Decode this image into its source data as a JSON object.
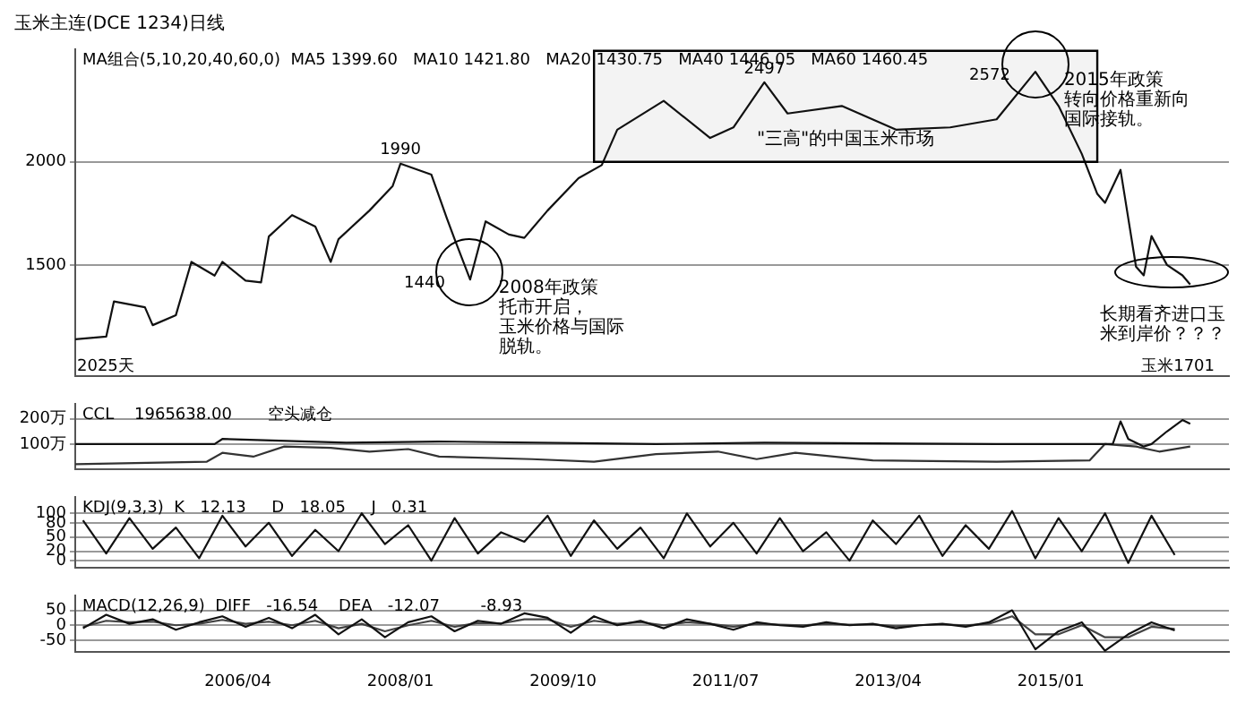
{
  "chart_data": [
    {
      "type": "line",
      "title": "玉米主连(DCE 1234)日线",
      "log": "y",
      "grid": "y",
      "legend": false,
      "marker": "none",
      "tick_labels": "y",
      "xlim": [
        "2004-07",
        "2016-12"
      ],
      "ylim": [
        1100,
        2740
      ],
      "yticks": [
        1500,
        2000
      ],
      "series": [
        {
          "color": "#111111",
          "x": [
            "2004-07",
            "2004-11",
            "2004-12",
            "2005-04",
            "2005-05",
            "2005-08",
            "2005-10",
            "2006-01",
            "2006-02",
            "2006-05",
            "2006-07",
            "2006-08",
            "2006-11",
            "2007-02",
            "2007-04",
            "2007-05",
            "2007-09",
            "2007-12",
            "2008-01",
            "2008-05",
            "2008-07",
            "2008-08",
            "2008-10",
            "2008-12",
            "2009-03",
            "2009-05",
            "2009-08",
            "2009-12",
            "2010-03",
            "2010-05",
            "2010-11",
            "2011-05",
            "2011-08",
            "2011-12",
            "2012-03",
            "2012-10",
            "2013-05",
            "2013-12",
            "2014-06",
            "2014-11",
            "2015-02",
            "2015-05",
            "2015-07",
            "2015-08",
            "2015-10",
            "2015-12",
            "2016-01",
            "2016-02",
            "2016-04",
            "2016-06",
            "2016-07"
          ],
          "values": [
            1219,
            1228,
            1355,
            1333,
            1268,
            1304,
            1513,
            1456,
            1513,
            1436,
            1429,
            1624,
            1724,
            1670,
            1513,
            1612,
            1746,
            1870,
            1990,
            1930,
            1708,
            1612,
            1440,
            1694,
            1633,
            1618,
            1746,
            1911,
            1982,
            2188,
            2371,
            2138,
            2202,
            2497,
            2289,
            2338,
            2188,
            2202,
            2252,
            2572,
            2338,
            2045,
            1829,
            1784,
            1956,
            1493,
            1457,
            1626,
            1500,
            1457,
            1420
          ]
        }
      ],
      "bands": [
        {
          "axis": "x",
          "from": "2010-02",
          "to": "2015-07",
          "label": "\"三高\"的中国玉米市场",
          "color": "#f3f3f3"
        }
      ],
      "annotations": [
        "MA组合(5,10,20,40,60,0)  MA5 1399.60   MA10 1421.80   MA20 1430.75   MA40 1446.05   MA60 1460.45",
        "2025天",
        "玉米1701",
        {
          "text": "1990",
          "x": "2008-01",
          "y": 1990
        },
        {
          "text": "1440",
          "x": "2008-10",
          "y": 1440
        },
        {
          "text": "2497",
          "x": "2011-12",
          "y": 2497
        },
        {
          "text": "2572",
          "x": "2014-11",
          "y": 2572
        },
        {
          "text": "2008年政策托市开启，玉米价格与国际脱轨。",
          "x": "2008-10",
          "y": 1440
        },
        {
          "text": "2015年政策转向价格重新向国际接轨。",
          "x": "2014-11",
          "y": 2572
        },
        {
          "text": "长期看齐进口玉米到岸价？？？",
          "x": "2016-07",
          "y": 1420
        }
      ]
    },
    {
      "type": "line",
      "grid": "y",
      "legend": false,
      "marker": "none",
      "tick_labels": "y",
      "xlim": [
        "2004-07",
        "2016-12"
      ],
      "ylim": [
        0,
        260
      ],
      "yticks": [
        {
          "value": 100,
          "label": "100万"
        },
        {
          "value": 200,
          "label": "200万"
        }
      ],
      "series": [
        {
          "color": "#111111",
          "x": [
            "2004-07",
            "2006-01",
            "2006-02",
            "2007-06",
            "2008-06",
            "2010-10",
            "2011-12",
            "2014-06",
            "2015-09",
            "2015-10",
            "2015-11",
            "2016-01",
            "2016-02",
            "2016-04",
            "2016-06",
            "2016-07"
          ],
          "values": [
            100,
            100,
            120,
            105,
            110,
            100,
            105,
            100,
            100,
            190,
            120,
            90,
            100,
            150,
            195,
            180
          ]
        },
        {
          "color": "#333333",
          "x": [
            "2004-07",
            "2005-12",
            "2006-02",
            "2006-06",
            "2006-10",
            "2007-04",
            "2007-09",
            "2008-02",
            "2008-06",
            "2009-06",
            "2010-02",
            "2010-10",
            "2011-06",
            "2011-11",
            "2012-04",
            "2013-02",
            "2014-06",
            "2015-06",
            "2015-08",
            "2015-12",
            "2016-03",
            "2016-07"
          ],
          "values": [
            20,
            30,
            65,
            50,
            90,
            85,
            70,
            80,
            50,
            40,
            30,
            60,
            70,
            40,
            65,
            35,
            30,
            35,
            100,
            90,
            70,
            90
          ]
        }
      ],
      "annotations": [
        "CCL    1965638.00       空头减仓"
      ]
    },
    {
      "type": "line",
      "grid": "y",
      "legend": false,
      "marker": "none",
      "tick_labels": "y",
      "xlim": [
        "2004-07",
        "2016-12"
      ],
      "ylim": [
        -15,
        135
      ],
      "yticks": [
        0,
        20,
        50,
        80,
        100
      ],
      "x": [
        "2004-08",
        "2004-11",
        "2005-02",
        "2005-05",
        "2005-08",
        "2005-11",
        "2006-02",
        "2006-05",
        "2006-08",
        "2006-11",
        "2007-02",
        "2007-05",
        "2007-08",
        "2007-11",
        "2008-02",
        "2008-05",
        "2008-08",
        "2008-11",
        "2009-02",
        "2009-05",
        "2009-08",
        "2009-11",
        "2010-02",
        "2010-05",
        "2010-08",
        "2010-11",
        "2011-02",
        "2011-05",
        "2011-08",
        "2011-11",
        "2012-02",
        "2012-05",
        "2012-08",
        "2012-11",
        "2013-02",
        "2013-05",
        "2013-08",
        "2013-11",
        "2014-02",
        "2014-05",
        "2014-08",
        "2014-11",
        "2015-02",
        "2015-05",
        "2015-08",
        "2015-11",
        "2016-02",
        "2016-05"
      ],
      "series": [
        {
          "color": "#111111",
          "values": [
            85,
            15,
            90,
            25,
            70,
            5,
            95,
            30,
            80,
            10,
            65,
            20,
            100,
            35,
            75,
            0,
            90,
            15,
            60,
            40,
            95,
            10,
            85,
            25,
            70,
            5,
            100,
            30,
            80,
            15,
            90,
            20,
            60,
            0,
            85,
            35,
            95,
            10,
            75,
            25,
            105,
            5,
            90,
            20,
            100,
            -5,
            95,
            12
          ]
        }
      ],
      "annotations": [
        "KDJ(9,3,3)  K   12.13     D   18.05     J   0.31"
      ]
    },
    {
      "type": "line",
      "grid": "y",
      "legend": false,
      "marker": "none",
      "xlim": [
        "2004-07",
        "2016-12"
      ],
      "ylim": [
        -90,
        100
      ],
      "yticks": [
        -50,
        0,
        50
      ],
      "xticks": [
        {
          "value": "2006-04",
          "label": "2006/04"
        },
        {
          "value": "2008-01",
          "label": "2008/01"
        },
        {
          "value": "2009-10",
          "label": "2009/10"
        },
        {
          "value": "2011-07",
          "label": "2011/07"
        },
        {
          "value": "2013-04",
          "label": "2013/04"
        },
        {
          "value": "2015-01",
          "label": "2015/01"
        }
      ],
      "x": [
        "2004-08",
        "2004-11",
        "2005-02",
        "2005-05",
        "2005-08",
        "2005-11",
        "2006-02",
        "2006-05",
        "2006-08",
        "2006-11",
        "2007-02",
        "2007-05",
        "2007-08",
        "2007-11",
        "2008-02",
        "2008-05",
        "2008-08",
        "2008-11",
        "2009-02",
        "2009-05",
        "2009-08",
        "2009-11",
        "2010-02",
        "2010-05",
        "2010-08",
        "2010-11",
        "2011-02",
        "2011-05",
        "2011-08",
        "2011-11",
        "2012-02",
        "2012-05",
        "2012-08",
        "2012-11",
        "2013-02",
        "2013-05",
        "2013-08",
        "2013-11",
        "2014-02",
        "2014-05",
        "2014-08",
        "2014-11",
        "2015-02",
        "2015-05",
        "2015-08",
        "2015-11",
        "2016-02",
        "2016-05"
      ],
      "series": [
        {
          "color": "#111111",
          "values": [
            -10,
            35,
            5,
            20,
            -15,
            10,
            30,
            -5,
            25,
            -10,
            35,
            -30,
            20,
            -40,
            10,
            30,
            -20,
            15,
            5,
            40,
            25,
            -25,
            30,
            0,
            15,
            -10,
            20,
            5,
            -15,
            10,
            0,
            -5,
            10,
            0,
            5,
            -10,
            0,
            5,
            -5,
            10,
            50,
            -80,
            -20,
            10,
            -85,
            -30,
            10,
            -17
          ]
        },
        {
          "color": "#444444",
          "values": [
            -5,
            15,
            10,
            12,
            0,
            5,
            18,
            5,
            12,
            0,
            15,
            -10,
            5,
            -20,
            0,
            15,
            -5,
            8,
            6,
            20,
            20,
            -5,
            15,
            5,
            10,
            0,
            10,
            5,
            -5,
            5,
            2,
            0,
            5,
            2,
            3,
            -3,
            0,
            3,
            0,
            5,
            30,
            -30,
            -30,
            0,
            -40,
            -40,
            -5,
            -12
          ]
        }
      ],
      "annotations": [
        "MACD(12,26,9)  DIFF   -16.54    DEA   -12.07        -8.93"
      ]
    }
  ]
}
